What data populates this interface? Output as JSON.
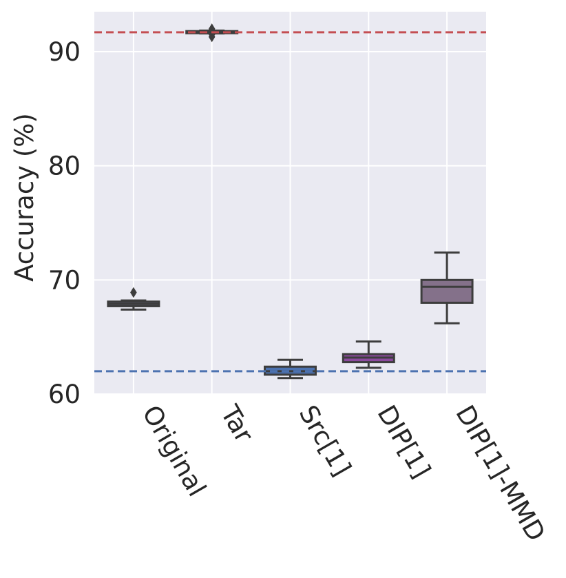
{
  "chart_data": {
    "type": "box",
    "title": "",
    "xlabel": "",
    "ylabel": "Accuracy (%)",
    "ylim": [
      60,
      93.5
    ],
    "yticks": [
      60,
      70,
      80,
      90
    ],
    "grid": true,
    "background": "#eaeaf2",
    "categories": [
      "Original",
      "Tar",
      "Src[1]",
      "DIP[1]",
      "DIP[1]-MMD"
    ],
    "boxes": [
      {
        "category": "Original",
        "whisker_low": 67.4,
        "q1": 67.7,
        "median": 67.9,
        "q3": 68.1,
        "whisker_high": 68.2,
        "outliers": [
          68.9
        ],
        "color": "#595973"
      },
      {
        "category": "Tar",
        "whisker_low": 91.6,
        "q1": 91.7,
        "median": 91.75,
        "q3": 91.8,
        "whisker_high": 91.85,
        "outliers": [
          91.3,
          91.5,
          91.9,
          92.0
        ],
        "color": "#4a4a60"
      },
      {
        "category": "Src[1]",
        "whisker_low": 61.4,
        "q1": 61.7,
        "median": 62.0,
        "q3": 62.4,
        "whisker_high": 63.0,
        "outliers": [],
        "color": "#4c72b0"
      },
      {
        "category": "DIP[1]",
        "whisker_low": 62.3,
        "q1": 62.8,
        "median": 63.2,
        "q3": 63.5,
        "whisker_high": 64.6,
        "outliers": [],
        "color": "#8c4a9e"
      },
      {
        "category": "DIP[1]-MMD",
        "whisker_low": 66.2,
        "q1": 68.0,
        "median": 69.4,
        "q3": 70.0,
        "whisker_high": 72.4,
        "outliers": [],
        "color": "#84718a"
      }
    ],
    "reference_lines": [
      {
        "value": 91.7,
        "color": "#c44e52",
        "style": "dashed"
      },
      {
        "value": 62.0,
        "color": "#4c72b0",
        "style": "dashed"
      }
    ]
  }
}
